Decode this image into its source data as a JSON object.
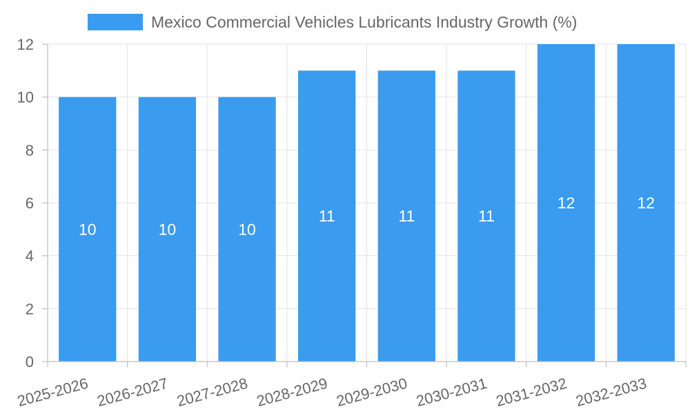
{
  "chart_data": {
    "type": "bar",
    "categories": [
      "2025-2026",
      "2026-2027",
      "2027-2028",
      "2028-2029",
      "2029-2030",
      "2030-2031",
      "2031-2032",
      "2032-2033"
    ],
    "series": [
      {
        "name": "Mexico Commercial Vehicles Lubricants Industry Growth (%)",
        "values": [
          10,
          10,
          10,
          11,
          11,
          11,
          12,
          12
        ],
        "color": "#3a9bef"
      }
    ],
    "ylim": [
      0,
      12
    ],
    "yticks": [
      0,
      2,
      4,
      6,
      8,
      10,
      12
    ],
    "grid": true,
    "legend_position": "top-center",
    "data_labels": [
      "10",
      "10",
      "10",
      "11",
      "11",
      "11",
      "12",
      "12"
    ]
  }
}
